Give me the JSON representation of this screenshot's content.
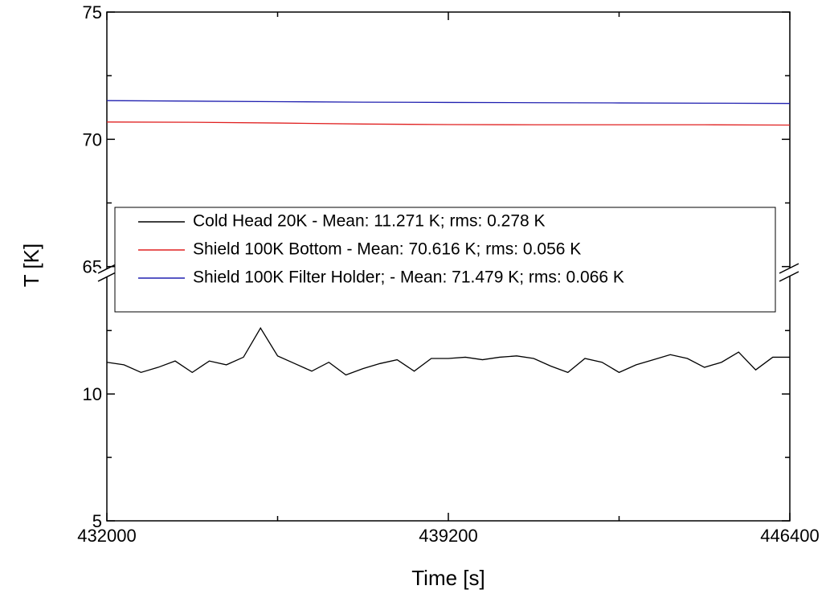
{
  "chart_data": {
    "type": "line",
    "xlabel": "Time [s]",
    "ylabel": "T [K]",
    "xlim": [
      432000,
      446400
    ],
    "xticks": [
      432000,
      439200,
      446400
    ],
    "xminorticks": [
      435600,
      442800
    ],
    "ylim_lower": [
      5,
      14.6
    ],
    "ylim_upper": [
      64.8,
      75
    ],
    "yticks": [
      5,
      10,
      65,
      70,
      75
    ],
    "yminorticks": [
      7.5,
      12.5,
      67.5,
      72.5
    ],
    "series": [
      {
        "name": "Cold Head 20K - Mean: 11.271 K; rms: 0.278 K",
        "color": "#000000",
        "x": [
          432000,
          432360,
          432720,
          433080,
          433440,
          433800,
          434160,
          434520,
          434880,
          435240,
          435600,
          435960,
          436320,
          436680,
          437040,
          437400,
          437760,
          438120,
          438480,
          438840,
          439200,
          439560,
          439920,
          440280,
          440640,
          441000,
          441360,
          441720,
          442080,
          442440,
          442800,
          443160,
          443520,
          443880,
          444240,
          444600,
          444960,
          445320,
          445680,
          446040,
          446400
        ],
        "values": [
          11.25,
          11.15,
          10.85,
          11.05,
          11.3,
          10.85,
          11.3,
          11.15,
          11.45,
          12.6,
          11.5,
          11.2,
          10.9,
          11.25,
          10.75,
          11.0,
          11.2,
          11.35,
          10.9,
          11.4,
          11.4,
          11.45,
          11.35,
          11.45,
          11.5,
          11.4,
          11.1,
          10.85,
          11.4,
          11.25,
          10.85,
          11.15,
          11.35,
          11.55,
          11.4,
          11.05,
          11.25,
          11.65,
          10.95,
          11.45,
          11.45
        ]
      },
      {
        "name": "Shield 100K Bottom - Mean: 70.616 K; rms: 0.056 K",
        "color": "#e02020",
        "x": [
          432000,
          433800,
          435600,
          437400,
          439200,
          441000,
          442800,
          444600,
          446400
        ],
        "values": [
          70.68,
          70.67,
          70.64,
          70.6,
          70.58,
          70.57,
          70.57,
          70.57,
          70.56
        ]
      },
      {
        "name": "Shield 100K Filter Holder; - Mean: 71.479 K; rms: 0.066 K",
        "color": "#2020b0",
        "x": [
          432000,
          433800,
          435600,
          437400,
          439200,
          441000,
          442800,
          444600,
          446400
        ],
        "values": [
          71.52,
          71.5,
          71.48,
          71.46,
          71.45,
          71.44,
          71.43,
          71.42,
          71.41
        ]
      }
    ]
  }
}
